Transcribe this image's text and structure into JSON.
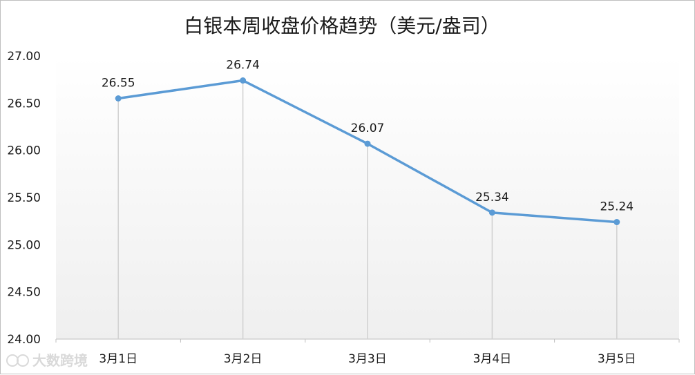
{
  "chart_data": {
    "type": "line",
    "title": "白银本周收盘价格趋势（美元/盎司）",
    "categories": [
      "3月1日",
      "3月2日",
      "3月3日",
      "3月4日",
      "3月5日"
    ],
    "series": [
      {
        "values": [
          26.55,
          26.74,
          26.07,
          25.34,
          25.24
        ]
      }
    ],
    "data_labels": [
      "26.55",
      "26.74",
      "26.07",
      "25.34",
      "25.24"
    ],
    "ylim": [
      24.0,
      27.0
    ],
    "y_ticks": [
      "24.00",
      "24.50",
      "25.00",
      "25.50",
      "26.00",
      "26.50",
      "27.00"
    ],
    "drop_lines": true,
    "grid": false,
    "line_color": "#5b9bd5"
  },
  "watermark": {
    "text": "大数跨境"
  }
}
